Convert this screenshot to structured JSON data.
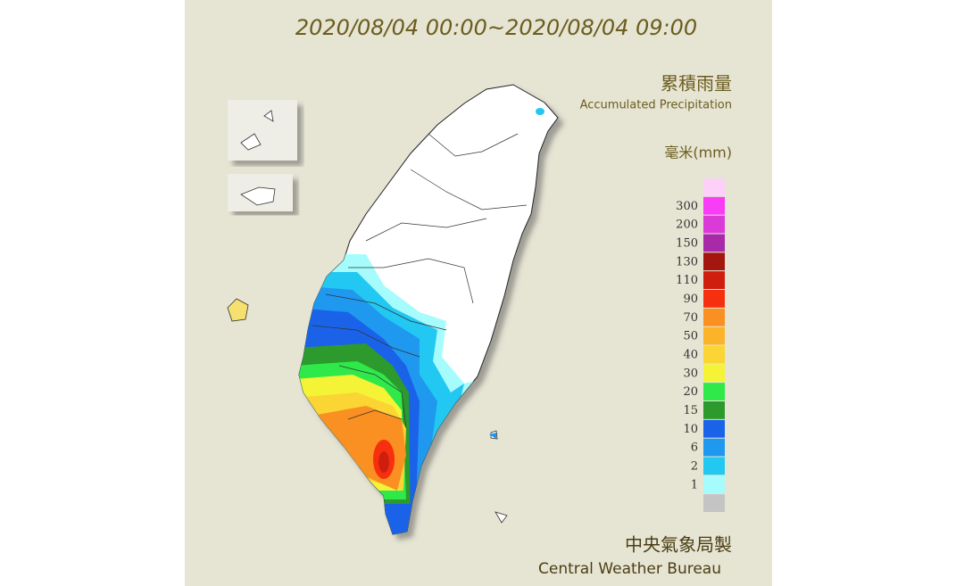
{
  "header": {
    "title": "2020/08/04 00:00~2020/08/04 09:00"
  },
  "legend": {
    "title_zh": "累積雨量",
    "title_en": "Accumulated Precipitation",
    "unit": "毫米(mm)",
    "items": [
      {
        "label": null,
        "color": "#fcd0f8"
      },
      {
        "label": "300",
        "color": "#f93cf6"
      },
      {
        "label": "200",
        "color": "#dc3ad8"
      },
      {
        "label": "150",
        "color": "#a92aa8"
      },
      {
        "label": "130",
        "color": "#a5170e"
      },
      {
        "label": "110",
        "color": "#d01e0e"
      },
      {
        "label": "90",
        "color": "#f6300f"
      },
      {
        "label": "70",
        "color": "#fa8f22"
      },
      {
        "label": "50",
        "color": "#fbb42a"
      },
      {
        "label": "40",
        "color": "#fbd534"
      },
      {
        "label": "30",
        "color": "#f4f336"
      },
      {
        "label": "20",
        "color": "#2fe84a"
      },
      {
        "label": "15",
        "color": "#2c9a2c"
      },
      {
        "label": "10",
        "color": "#1a63e8"
      },
      {
        "label": "6",
        "color": "#1f98f0"
      },
      {
        "label": "2",
        "color": "#22c8f2"
      },
      {
        "label": "1",
        "color": "#a6fcfc"
      },
      {
        "label": null,
        "color": "#c4c4c4"
      }
    ]
  },
  "footer": {
    "zh": "中央氣象局製",
    "en": "Central Weather Bureau"
  }
}
